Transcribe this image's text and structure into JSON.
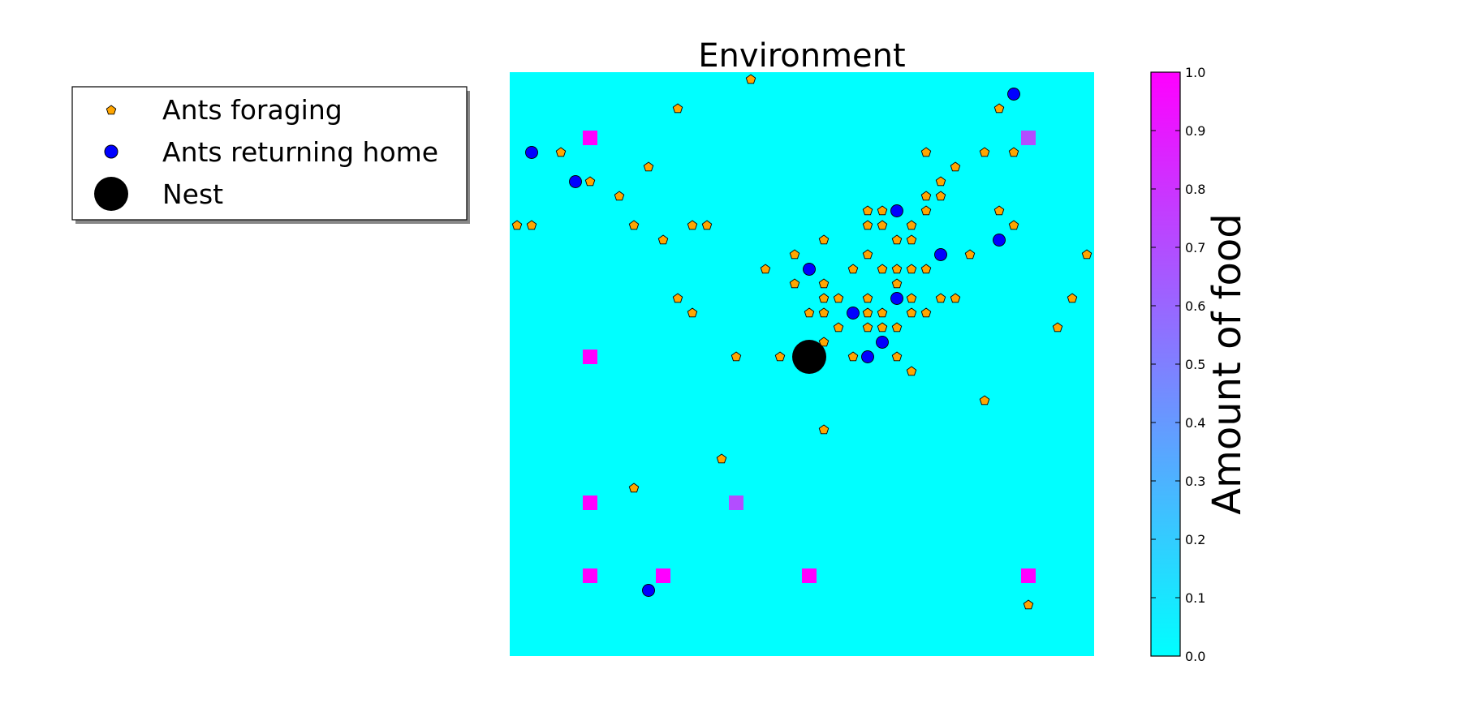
{
  "chart_data": {
    "type": "scatter",
    "title": "Environment",
    "grid_size": 40,
    "xlim": [
      0,
      40
    ],
    "ylim": [
      0,
      40
    ],
    "legend": {
      "placement": "left-outside",
      "entries": [
        "Ants foraging",
        "Ants returning home",
        "Nest"
      ]
    },
    "colorbar": {
      "label": "Amount of food",
      "range": [
        0.0,
        1.0
      ],
      "ticks": [
        "0.0",
        "0.1",
        "0.2",
        "0.3",
        "0.4",
        "0.5",
        "0.6",
        "0.7",
        "0.8",
        "0.9",
        "1.0"
      ],
      "color_min": "#00ffff",
      "color_max": "#ff00ff"
    },
    "background_color": "#00ffff",
    "nest": {
      "x": 20.5,
      "y": 20.5
    },
    "food": [
      {
        "x": 5.5,
        "y": 35.5,
        "value": 1.0
      },
      {
        "x": 35.5,
        "y": 35.5,
        "value": 0.7
      },
      {
        "x": 5.5,
        "y": 20.5,
        "value": 1.0
      },
      {
        "x": 5.5,
        "y": 10.5,
        "value": 1.0
      },
      {
        "x": 15.5,
        "y": 10.5,
        "value": 0.7
      },
      {
        "x": 5.5,
        "y": 5.5,
        "value": 1.0
      },
      {
        "x": 10.5,
        "y": 5.5,
        "value": 1.0
      },
      {
        "x": 20.5,
        "y": 5.5,
        "value": 1.0
      },
      {
        "x": 35.5,
        "y": 5.5,
        "value": 1.0
      }
    ],
    "series": [
      {
        "name": "Ants foraging",
        "color": "#ffa500",
        "marker": "pentagon",
        "points": [
          [
            16.5,
            39.5
          ],
          [
            11.5,
            37.5
          ],
          [
            33.5,
            37.5
          ],
          [
            3.5,
            34.5
          ],
          [
            28.5,
            34.5
          ],
          [
            32.5,
            34.5
          ],
          [
            34.5,
            34.5
          ],
          [
            5.5,
            32.5
          ],
          [
            9.5,
            33.5
          ],
          [
            30.5,
            33.5
          ],
          [
            29.5,
            32.5
          ],
          [
            7.5,
            31.5
          ],
          [
            28.5,
            31.5
          ],
          [
            29.5,
            31.5
          ],
          [
            24.5,
            30.5
          ],
          [
            25.5,
            30.5
          ],
          [
            28.5,
            30.5
          ],
          [
            33.5,
            30.5
          ],
          [
            0.5,
            29.5
          ],
          [
            1.5,
            29.5
          ],
          [
            8.5,
            29.5
          ],
          [
            12.5,
            29.5
          ],
          [
            13.5,
            29.5
          ],
          [
            24.5,
            29.5
          ],
          [
            25.5,
            29.5
          ],
          [
            27.5,
            29.5
          ],
          [
            34.5,
            29.5
          ],
          [
            10.5,
            28.5
          ],
          [
            21.5,
            28.5
          ],
          [
            26.5,
            28.5
          ],
          [
            27.5,
            28.5
          ],
          [
            19.5,
            27.5
          ],
          [
            24.5,
            27.5
          ],
          [
            31.5,
            27.5
          ],
          [
            39.5,
            27.5
          ],
          [
            17.5,
            26.5
          ],
          [
            23.5,
            26.5
          ],
          [
            25.5,
            26.5
          ],
          [
            26.5,
            26.5
          ],
          [
            27.5,
            26.5
          ],
          [
            28.5,
            26.5
          ],
          [
            19.5,
            25.5
          ],
          [
            21.5,
            25.5
          ],
          [
            26.5,
            25.5
          ],
          [
            11.5,
            24.5
          ],
          [
            21.5,
            24.5
          ],
          [
            22.5,
            24.5
          ],
          [
            24.5,
            24.5
          ],
          [
            27.5,
            24.5
          ],
          [
            29.5,
            24.5
          ],
          [
            30.5,
            24.5
          ],
          [
            38.5,
            24.5
          ],
          [
            12.5,
            23.5
          ],
          [
            20.5,
            23.5
          ],
          [
            21.5,
            23.5
          ],
          [
            24.5,
            23.5
          ],
          [
            25.5,
            23.5
          ],
          [
            27.5,
            23.5
          ],
          [
            28.5,
            23.5
          ],
          [
            22.5,
            22.5
          ],
          [
            24.5,
            22.5
          ],
          [
            25.5,
            22.5
          ],
          [
            26.5,
            22.5
          ],
          [
            37.5,
            22.5
          ],
          [
            21.5,
            21.5
          ],
          [
            15.5,
            20.5
          ],
          [
            18.5,
            20.5
          ],
          [
            23.5,
            20.5
          ],
          [
            26.5,
            20.5
          ],
          [
            27.5,
            19.5
          ],
          [
            32.5,
            17.5
          ],
          [
            21.5,
            15.5
          ],
          [
            14.5,
            13.5
          ],
          [
            8.5,
            11.5
          ],
          [
            35.5,
            3.5
          ]
        ]
      },
      {
        "name": "Ants returning home",
        "color": "#0000ff",
        "marker": "circle",
        "points": [
          [
            34.5,
            38.5
          ],
          [
            1.5,
            34.5
          ],
          [
            4.5,
            32.5
          ],
          [
            26.5,
            30.5
          ],
          [
            33.5,
            28.5
          ],
          [
            29.5,
            27.5
          ],
          [
            20.5,
            26.5
          ],
          [
            26.5,
            24.5
          ],
          [
            23.5,
            23.5
          ],
          [
            25.5,
            21.5
          ],
          [
            24.5,
            20.5
          ],
          [
            9.5,
            4.5
          ]
        ]
      }
    ]
  }
}
